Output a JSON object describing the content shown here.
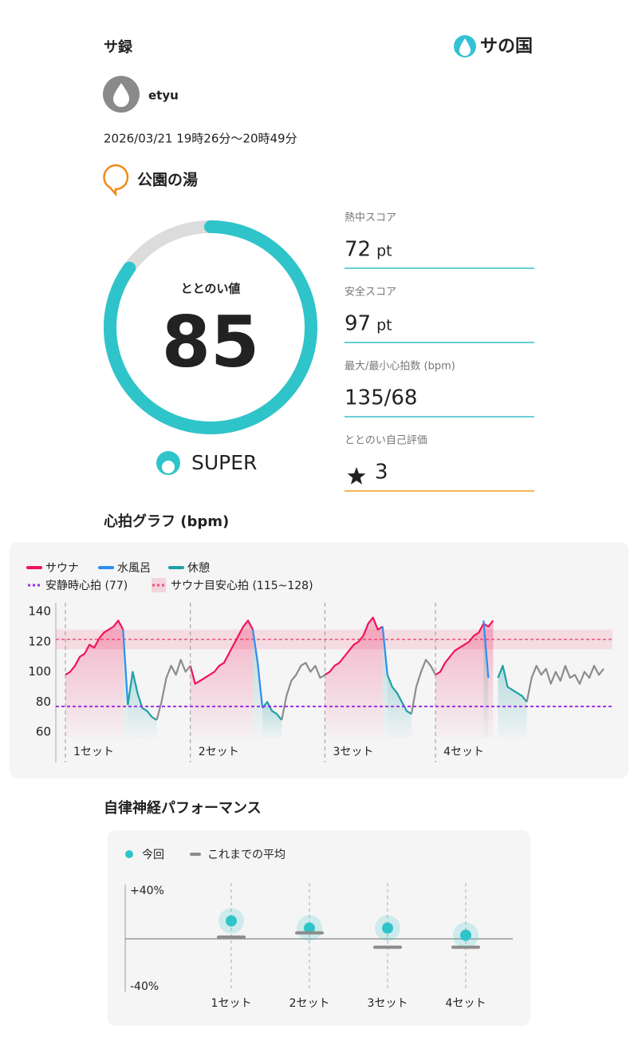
{
  "header": {
    "title": "サ録",
    "logo": "サの国"
  },
  "user": {
    "name": "etyu"
  },
  "visit": {
    "date": "2026/03/21 19時26分〜20時49分",
    "place": "公園の湯"
  },
  "score": {
    "label": "ととのい値",
    "value": 85,
    "gauge_range": [
      0,
      100
    ],
    "rank": "SUPER",
    "color": "#2fc4c9"
  },
  "stats": {
    "items": [
      {
        "label": "熱中スコア",
        "value": 72,
        "unit": "pt"
      },
      {
        "label": "安全スコア",
        "value": 97,
        "unit": "pt"
      },
      {
        "label": "最大/最小心拍数 (bpm)",
        "value": "135/68"
      },
      {
        "label": "ととのい自己評価",
        "value": 3
      }
    ]
  },
  "heart_chart": {
    "type": "line",
    "title": "心拍グラフ (bpm)",
    "ylim": [
      60,
      140
    ],
    "yticks": [
      60,
      80,
      100,
      120,
      140
    ],
    "resting": {
      "label": "安静時心拍 (77)",
      "value": 77,
      "color": "#9b30e6"
    },
    "target": {
      "label": "サウナ目安心拍 (115~128)",
      "range": [
        115,
        128
      ],
      "color": "#f0507a"
    },
    "set_labels": [
      "1セット",
      "2セット",
      "3セット",
      "4セット"
    ],
    "series": [
      {
        "name": "サウナ",
        "color": "#f0145a",
        "area": true,
        "sets": true,
        "values": [
          98,
          100,
          104,
          110,
          112,
          118,
          116,
          122,
          126,
          128,
          130,
          134,
          128,
          null,
          null,
          null,
          null,
          null,
          null,
          null,
          null,
          null,
          null,
          null,
          null,
          null,
          104,
          92,
          94,
          96,
          98,
          100,
          104,
          106,
          112,
          118,
          124,
          130,
          134,
          128,
          null,
          null,
          null,
          null,
          null,
          null,
          null,
          null,
          null,
          null,
          null,
          null,
          null,
          null,
          98,
          100,
          104,
          106,
          110,
          114,
          118,
          120,
          124,
          132,
          136,
          128,
          130,
          null,
          null,
          null,
          null,
          null,
          null,
          null,
          null,
          null,
          null,
          98,
          100,
          106,
          110,
          114,
          116,
          118,
          120,
          124,
          126,
          132,
          130,
          134,
          null,
          null,
          null,
          null,
          null,
          null,
          null,
          null,
          null,
          null,
          null,
          null,
          null,
          null,
          null,
          null,
          null,
          null,
          null,
          null,
          null,
          null,
          null
        ]
      },
      {
        "name": "水風呂",
        "color": "#2d8ef0",
        "area": true,
        "values": [
          null,
          null,
          null,
          null,
          null,
          null,
          null,
          null,
          null,
          null,
          null,
          null,
          128,
          78,
          null,
          null,
          null,
          null,
          null,
          null,
          null,
          null,
          null,
          null,
          null,
          null,
          null,
          null,
          null,
          null,
          null,
          null,
          null,
          null,
          null,
          null,
          null,
          null,
          null,
          128,
          106,
          76,
          null,
          null,
          null,
          null,
          null,
          null,
          null,
          null,
          null,
          null,
          null,
          null,
          null,
          null,
          null,
          null,
          null,
          null,
          null,
          null,
          null,
          null,
          null,
          null,
          130,
          98,
          null,
          null,
          null,
          null,
          null,
          null,
          null,
          null,
          null,
          null,
          null,
          null,
          null,
          null,
          null,
          null,
          null,
          null,
          null,
          134,
          96,
          null,
          null,
          null,
          null,
          null,
          null,
          null,
          null,
          null,
          null,
          null,
          null,
          null,
          null,
          null,
          null,
          null,
          null,
          null,
          null,
          null,
          null
        ]
      },
      {
        "name": "休憩",
        "color": "#1ea0a5",
        "area": true,
        "values": [
          null,
          null,
          null,
          null,
          null,
          null,
          null,
          null,
          null,
          null,
          null,
          null,
          null,
          78,
          100,
          86,
          76,
          74,
          70,
          68,
          null,
          null,
          null,
          null,
          null,
          null,
          null,
          null,
          null,
          null,
          null,
          null,
          null,
          null,
          null,
          null,
          null,
          null,
          null,
          null,
          null,
          76,
          80,
          74,
          72,
          68,
          null,
          null,
          null,
          null,
          null,
          null,
          null,
          null,
          null,
          null,
          null,
          null,
          null,
          null,
          null,
          null,
          null,
          null,
          null,
          null,
          null,
          98,
          90,
          86,
          80,
          74,
          72,
          null,
          null,
          null,
          null,
          null,
          null,
          null,
          null,
          null,
          null,
          null,
          null,
          null,
          null,
          null,
          null,
          null,
          96,
          104,
          90,
          88,
          86,
          84,
          80,
          null,
          null,
          null,
          null,
          null,
          null,
          null,
          null,
          null,
          null,
          null,
          null,
          null,
          null,
          null,
          null
        ]
      },
      {
        "color": "#8c8c8c",
        "area": false,
        "values": [
          null,
          null,
          null,
          null,
          null,
          null,
          null,
          null,
          null,
          null,
          null,
          null,
          null,
          null,
          null,
          null,
          null,
          null,
          null,
          68,
          80,
          96,
          104,
          98,
          108,
          100,
          104,
          null,
          null,
          null,
          null,
          null,
          null,
          null,
          null,
          null,
          null,
          null,
          null,
          null,
          null,
          null,
          null,
          null,
          null,
          68,
          84,
          94,
          98,
          104,
          106,
          100,
          104,
          96,
          98,
          null,
          null,
          null,
          null,
          null,
          null,
          null,
          null,
          null,
          null,
          null,
          null,
          null,
          null,
          null,
          null,
          null,
          72,
          90,
          100,
          108,
          104,
          98,
          null,
          null,
          null,
          null,
          null,
          null,
          null,
          null,
          null,
          null,
          null,
          null,
          null,
          null,
          null,
          null,
          null,
          null,
          80,
          96,
          104,
          98,
          102,
          92,
          100,
          94,
          104,
          96,
          98,
          92,
          100,
          96,
          104,
          98,
          102
        ]
      }
    ]
  },
  "autonomic": {
    "type": "dot",
    "title": "自律神経パフォーマンス",
    "ylim": [
      -40,
      40
    ],
    "yticks": [
      {
        "value": 40,
        "label": "+40%"
      },
      {
        "value": -40,
        "label": "-40%"
      }
    ],
    "categories": [
      "1セット",
      "2セット",
      "3セット",
      "4セット"
    ],
    "series": [
      {
        "name": "今回",
        "color": "#2fc4c9",
        "marker": "dot",
        "values": [
          15,
          9,
          9,
          3
        ]
      },
      {
        "name": "これまでの平均",
        "color": "#8c8c8c",
        "marker": "bar",
        "values": [
          1.5,
          5,
          -7,
          -7
        ]
      }
    ]
  }
}
